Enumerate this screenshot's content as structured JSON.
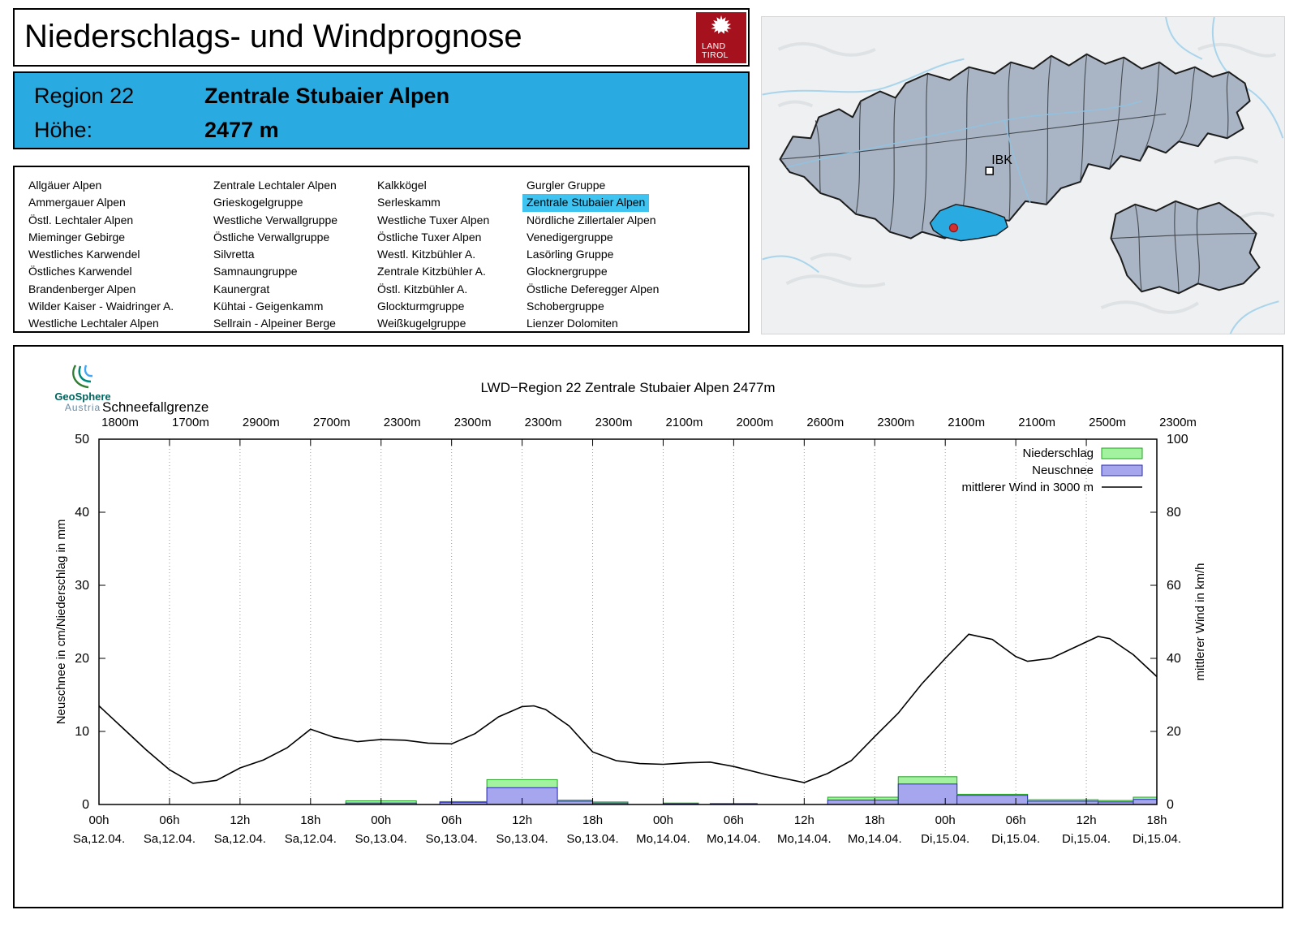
{
  "header": {
    "title": "Niederschlags- und Windprognose",
    "logo": {
      "line1": "LAND",
      "line2": "TIROL",
      "bg_color": "#a5121d"
    }
  },
  "region_header": {
    "region_label": "Region 22",
    "region_value": "Zentrale Stubaier Alpen",
    "altitude_label": "Höhe:",
    "altitude_value": "2477 m",
    "bg_color": "#29abe2"
  },
  "region_list": {
    "selected": "Zentrale Stubaier Alpen",
    "highlight_color": "#3fc3f0",
    "columns": [
      [
        "Allgäuer Alpen",
        "Ammergauer Alpen",
        "Östl. Lechtaler Alpen",
        "Mieminger Gebirge",
        "Westliches Karwendel",
        "Östliches Karwendel",
        "Brandenberger Alpen",
        "Wilder Kaiser - Waidringer A.",
        "Westliche Lechtaler Alpen"
      ],
      [
        "Zentrale Lechtaler Alpen",
        "Grieskogelgruppe",
        "Westliche Verwallgruppe",
        "Östliche Verwallgruppe",
        "Silvretta",
        "Samnaungruppe",
        "Kaunergrat",
        "Kühtai - Geigenkamm",
        "Sellrain - Alpeiner Berge"
      ],
      [
        "Kalkkögel",
        "Serleskamm",
        "Westliche Tuxer Alpen",
        "Östliche Tuxer Alpen",
        "Westl. Kitzbühler A.",
        "Zentrale Kitzbühler A.",
        "Östl. Kitzbühler A.",
        "Glockturmgruppe",
        "Weißkugelgruppe"
      ],
      [
        "Gurgler Gruppe",
        "Zentrale Stubaier Alpen",
        "Nördliche Zillertaler Alpen",
        "Venedigergruppe",
        "Lasörling Gruppe",
        "Glocknergruppe",
        "Östliche Deferegger Alpen",
        "Schobergruppe",
        "Lienzer Dolomiten"
      ]
    ]
  },
  "map": {
    "city_label": "IBK",
    "region_fill": "#a9b5c4",
    "selected_region_color": "#29abe2"
  },
  "geosphere_logo": {
    "line1": "GeoSphere",
    "line2": "Austria"
  },
  "chart_data": {
    "type": "bar+line",
    "title": "LWD−Region 22 Zentrale Stubaier Alpen 2477m",
    "snowline_label": "Schneefallgrenze",
    "snowline_values": [
      "1800m",
      "1700m",
      "2900m",
      "2700m",
      "2300m",
      "2300m",
      "2300m",
      "2300m",
      "2100m",
      "2000m",
      "2600m",
      "2300m",
      "2100m",
      "2100m",
      "2500m",
      "2300m"
    ],
    "ylabel_left": "Neuschnee in cm/Niederschlag in mm",
    "ylabel_right": "mittlerer Wind in km/h",
    "ylim_left": [
      0,
      50
    ],
    "yticks_left": [
      0,
      10,
      20,
      30,
      40,
      50
    ],
    "ylim_right": [
      0,
      100
    ],
    "yticks_right": [
      0,
      20,
      40,
      60,
      80,
      100
    ],
    "x_hours_range": [
      0,
      90
    ],
    "x_ticks": [
      {
        "hour": 0,
        "time": "00h",
        "date": "Sa,12.04."
      },
      {
        "hour": 6,
        "time": "06h",
        "date": "Sa,12.04."
      },
      {
        "hour": 12,
        "time": "12h",
        "date": "Sa,12.04."
      },
      {
        "hour": 18,
        "time": "18h",
        "date": "Sa,12.04."
      },
      {
        "hour": 24,
        "time": "00h",
        "date": "So,13.04."
      },
      {
        "hour": 30,
        "time": "06h",
        "date": "So,13.04."
      },
      {
        "hour": 36,
        "time": "12h",
        "date": "So,13.04."
      },
      {
        "hour": 42,
        "time": "18h",
        "date": "So,13.04."
      },
      {
        "hour": 48,
        "time": "00h",
        "date": "Mo,14.04."
      },
      {
        "hour": 54,
        "time": "06h",
        "date": "Mo,14.04."
      },
      {
        "hour": 60,
        "time": "12h",
        "date": "Mo,14.04."
      },
      {
        "hour": 66,
        "time": "18h",
        "date": "Mo,14.04."
      },
      {
        "hour": 72,
        "time": "00h",
        "date": "Di,15.04."
      },
      {
        "hour": 78,
        "time": "06h",
        "date": "Di,15.04."
      },
      {
        "hour": 84,
        "time": "12h",
        "date": "Di,15.04."
      },
      {
        "hour": 90,
        "time": "18h",
        "date": "Di,15.04."
      }
    ],
    "legend": [
      {
        "label": "Niederschlag",
        "type": "bar",
        "fill": "#a3f2a0",
        "stroke": "#24a324"
      },
      {
        "label": "Neuschnee",
        "type": "bar",
        "fill": "#a6a6ee",
        "stroke": "#2a2ab8"
      },
      {
        "label": "mittlerer Wind in 3000 m",
        "type": "line",
        "stroke": "#000000"
      }
    ],
    "bars": [
      {
        "start": 21,
        "end": 27,
        "niederschlag": 0.5,
        "neuschnee": 0.2
      },
      {
        "start": 29,
        "end": 33,
        "niederschlag": 0.4,
        "neuschnee": 0.3
      },
      {
        "start": 33,
        "end": 39,
        "niederschlag": 3.4,
        "neuschnee": 2.3
      },
      {
        "start": 39,
        "end": 42,
        "niederschlag": 0.6,
        "neuschnee": 0.45
      },
      {
        "start": 42,
        "end": 45,
        "niederschlag": 0.35,
        "neuschnee": 0.2
      },
      {
        "start": 48,
        "end": 51,
        "niederschlag": 0.2,
        "neuschnee": 0.1
      },
      {
        "start": 52,
        "end": 56,
        "niederschlag": 0.15,
        "neuschnee": 0.05
      },
      {
        "start": 62,
        "end": 68,
        "niederschlag": 1.0,
        "neuschnee": 0.6
      },
      {
        "start": 68,
        "end": 73,
        "niederschlag": 3.8,
        "neuschnee": 2.8
      },
      {
        "start": 73,
        "end": 79,
        "niederschlag": 1.4,
        "neuschnee": 1.25
      },
      {
        "start": 79,
        "end": 85,
        "niederschlag": 0.65,
        "neuschnee": 0.45
      },
      {
        "start": 85,
        "end": 88,
        "niederschlag": 0.55,
        "neuschnee": 0.35
      },
      {
        "start": 88,
        "end": 90,
        "niederschlag": 1.0,
        "neuschnee": 0.7
      }
    ],
    "wind_series": [
      [
        0,
        27
      ],
      [
        2,
        21
      ],
      [
        4,
        15
      ],
      [
        6,
        9.5
      ],
      [
        8,
        5.8
      ],
      [
        10,
        6.6
      ],
      [
        12,
        10
      ],
      [
        14,
        12.2
      ],
      [
        16,
        15.5
      ],
      [
        18,
        20.6
      ],
      [
        20,
        18.4
      ],
      [
        22,
        17.2
      ],
      [
        24,
        17.8
      ],
      [
        26,
        17.6
      ],
      [
        28,
        16.8
      ],
      [
        30,
        16.6
      ],
      [
        32,
        19.4
      ],
      [
        34,
        24
      ],
      [
        36,
        26.8
      ],
      [
        37,
        27
      ],
      [
        38,
        26
      ],
      [
        40,
        21.5
      ],
      [
        42,
        14.4
      ],
      [
        44,
        12
      ],
      [
        46,
        11.2
      ],
      [
        48,
        11
      ],
      [
        50,
        11.4
      ],
      [
        52,
        11.6
      ],
      [
        54,
        10.4
      ],
      [
        57,
        8
      ],
      [
        60,
        6
      ],
      [
        62,
        8.5
      ],
      [
        64,
        12
      ],
      [
        66,
        18.6
      ],
      [
        68,
        25
      ],
      [
        70,
        33
      ],
      [
        72,
        40
      ],
      [
        74,
        46.6
      ],
      [
        76,
        45.2
      ],
      [
        78,
        40.5
      ],
      [
        79,
        39.2
      ],
      [
        81,
        40
      ],
      [
        83,
        43
      ],
      [
        85,
        46
      ],
      [
        86,
        45.4
      ],
      [
        88,
        41
      ],
      [
        90,
        35
      ]
    ]
  }
}
